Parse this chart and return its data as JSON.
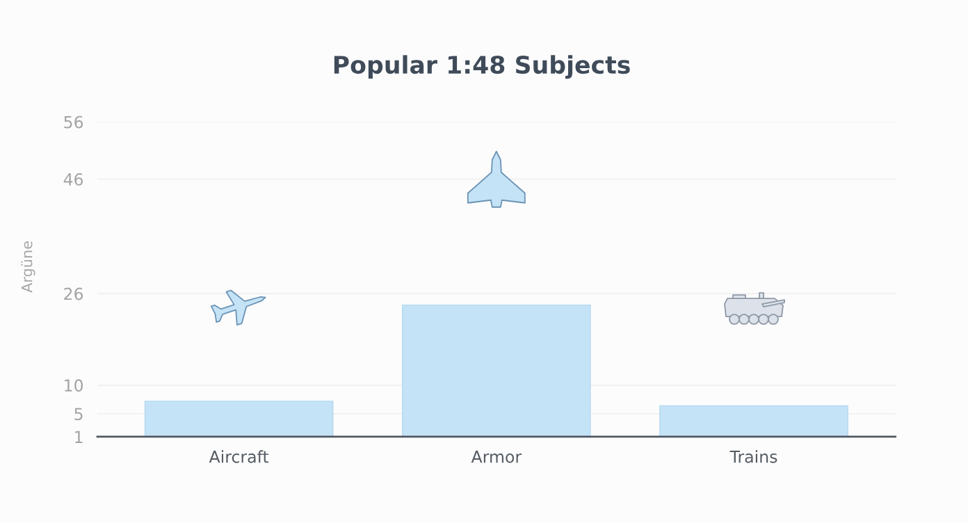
{
  "chart_data": {
    "type": "bar",
    "title": "Popular 1:48 Subjects",
    "ylabel": "Argüne",
    "categories": [
      "Aircraft",
      "Armor",
      "Trains"
    ],
    "values": [
      7.2,
      24,
      6.4
    ],
    "color": "#c5e3f6",
    "ylim": [
      1,
      56
    ],
    "yticks": [
      1,
      5,
      10,
      26,
      46,
      56
    ],
    "grid": "y"
  }
}
